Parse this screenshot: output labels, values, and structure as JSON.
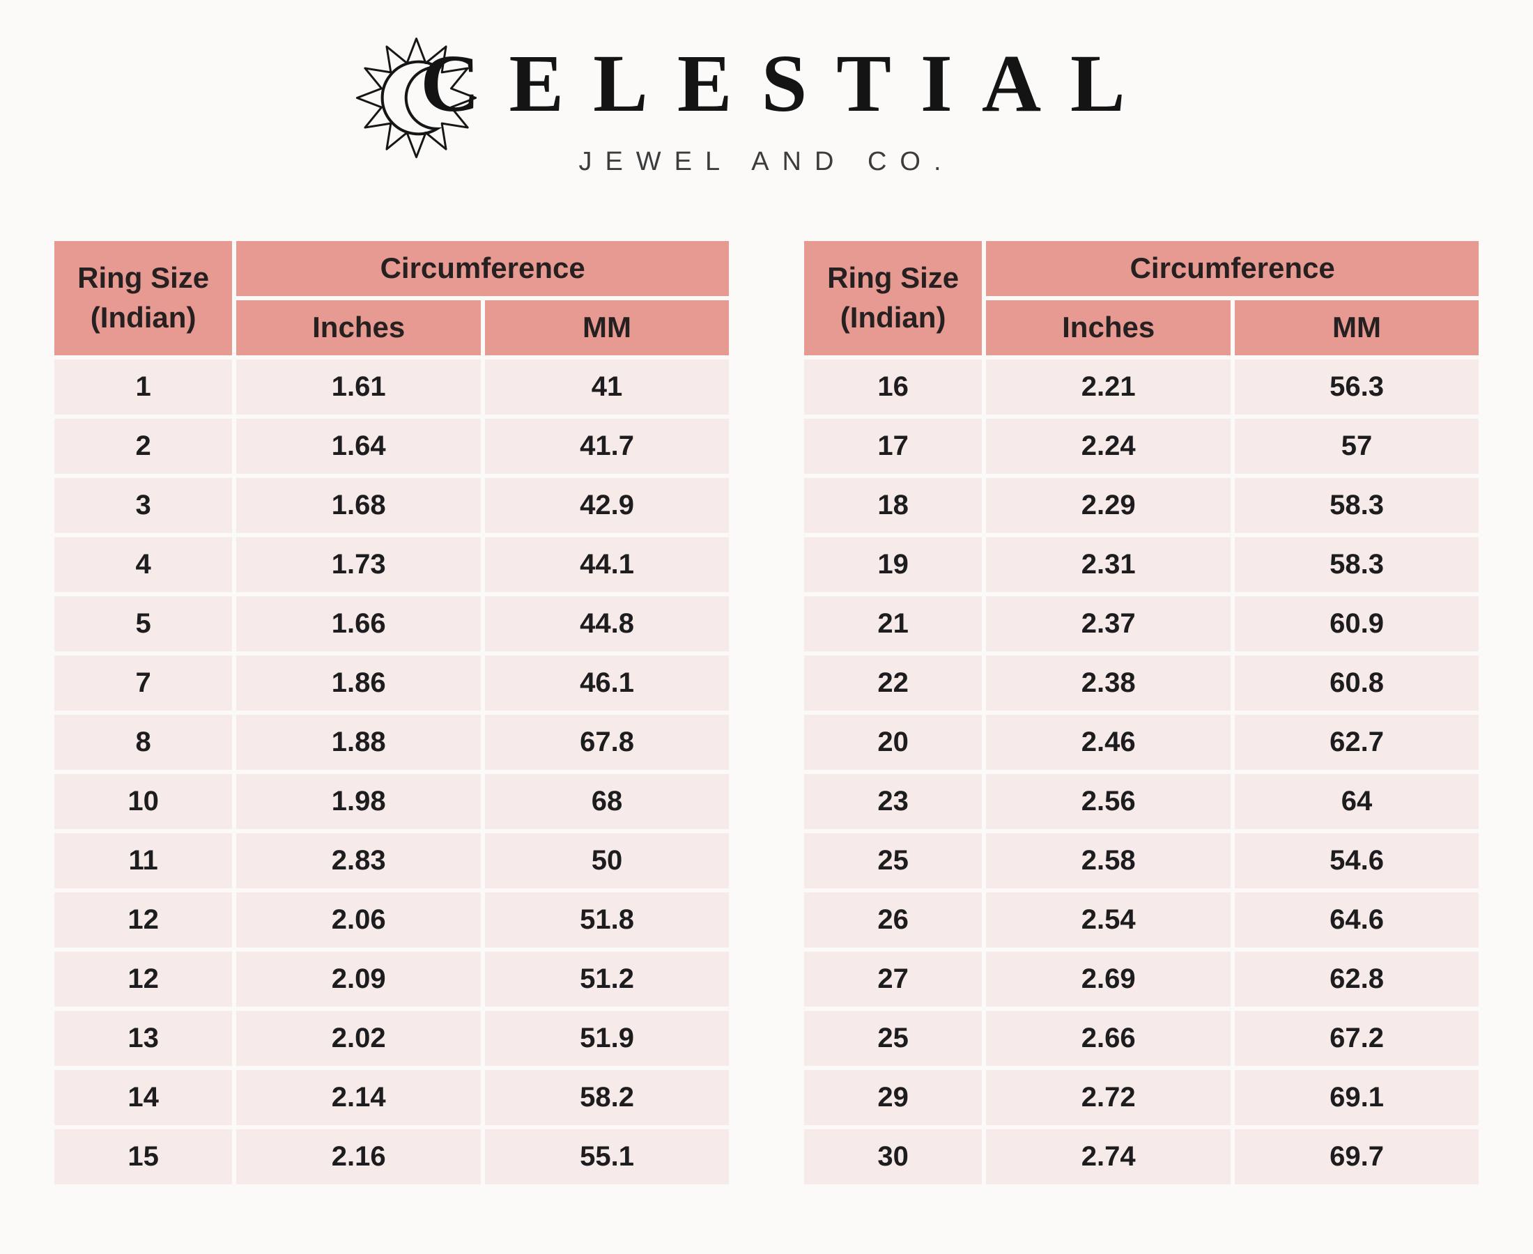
{
  "brand": {
    "name": "CELESTIAL",
    "subtitle": "JEWEL AND CO.",
    "logo_icon": "sun-crescent-icon"
  },
  "table_headers": {
    "ring_size_line1": "Ring Size",
    "ring_size_line2": "(Indian)",
    "circumference": "Circumference",
    "inches": "Inches",
    "mm": "MM"
  },
  "left_table": {
    "rows": [
      [
        "1",
        "1.61",
        "41"
      ],
      [
        "2",
        "1.64",
        "41.7"
      ],
      [
        "3",
        "1.68",
        "42.9"
      ],
      [
        "4",
        "1.73",
        "44.1"
      ],
      [
        "5",
        "1.66",
        "44.8"
      ],
      [
        "7",
        "1.86",
        "46.1"
      ],
      [
        "8",
        "1.88",
        "67.8"
      ],
      [
        "10",
        "1.98",
        "68"
      ],
      [
        "11",
        "2.83",
        "50"
      ],
      [
        "12",
        "2.06",
        "51.8"
      ],
      [
        "12",
        "2.09",
        "51.2"
      ],
      [
        "13",
        "2.02",
        "51.9"
      ],
      [
        "14",
        "2.14",
        "58.2"
      ],
      [
        "15",
        "2.16",
        "55.1"
      ]
    ]
  },
  "right_table": {
    "rows": [
      [
        "16",
        "2.21",
        "56.3"
      ],
      [
        "17",
        "2.24",
        "57"
      ],
      [
        "18",
        "2.29",
        "58.3"
      ],
      [
        "19",
        "2.31",
        "58.3"
      ],
      [
        "21",
        "2.37",
        "60.9"
      ],
      [
        "22",
        "2.38",
        "60.8"
      ],
      [
        "20",
        "2.46",
        "62.7"
      ],
      [
        "23",
        "2.56",
        "64"
      ],
      [
        "25",
        "2.58",
        "54.6"
      ],
      [
        "26",
        "2.54",
        "64.6"
      ],
      [
        "27",
        "2.69",
        "62.8"
      ],
      [
        "25",
        "2.66",
        "67.2"
      ],
      [
        "29",
        "2.72",
        "69.1"
      ],
      [
        "30",
        "2.74",
        "69.7"
      ]
    ]
  },
  "colors": {
    "header_pink": "#E69A92",
    "row_pink": "#F7EBE9",
    "page_bg": "#FBFAF9",
    "text": "#1D1D1F"
  }
}
